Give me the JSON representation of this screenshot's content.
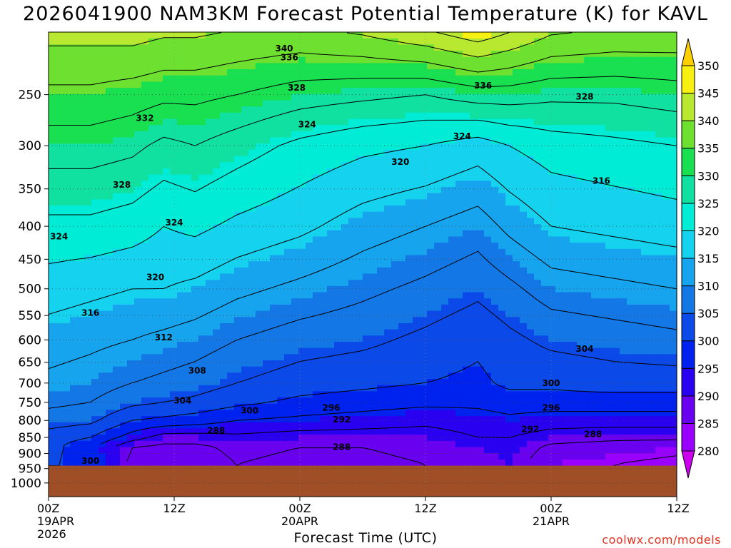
{
  "chart_data": {
    "type": "heatmap",
    "title": "2026041900 NAM3KM Forecast Potential Temperature (K) for KAVL",
    "xlabel": "Forecast Time (UTC)",
    "ylabel": "",
    "x_ticks": [
      {
        "hours": 0,
        "line1": "00Z",
        "line2": "19APR",
        "line3": "2026"
      },
      {
        "hours": 12,
        "line1": "12Z",
        "line2": "",
        "line3": ""
      },
      {
        "hours": 24,
        "line1": "00Z",
        "line2": "20APR",
        "line3": ""
      },
      {
        "hours": 36,
        "line1": "12Z",
        "line2": "",
        "line3": ""
      },
      {
        "hours": 48,
        "line1": "00Z",
        "line2": "21APR",
        "line3": ""
      },
      {
        "hours": 60,
        "line1": "12Z",
        "line2": "",
        "line3": ""
      }
    ],
    "xlim_hours": [
      0,
      60
    ],
    "y_axis": "pressure (hPa), inverted, log scale",
    "y_ticks": [
      250,
      300,
      350,
      400,
      450,
      500,
      550,
      600,
      650,
      700,
      750,
      800,
      850,
      900,
      950,
      1000
    ],
    "ylim_hpa": [
      1050,
      200
    ],
    "grid": true,
    "colorbar": {
      "levels": [
        280,
        285,
        290,
        295,
        300,
        305,
        310,
        315,
        320,
        325,
        330,
        335,
        340,
        345,
        350
      ],
      "colors": [
        "#cc00ee",
        "#9900ff",
        "#6a00f0",
        "#2a00f0",
        "#0022ee",
        "#0b49e8",
        "#1377e6",
        "#17a4ee",
        "#15d2ee",
        "#00ecd6",
        "#10e0a0",
        "#18e050",
        "#6ee030",
        "#b8e830",
        "#f8f010",
        "#ffd000"
      ],
      "placement": "right"
    },
    "terrain_color": "#a04e25",
    "surface_pressure_hpa": 940,
    "theta_profiles": [
      {
        "hours": 0,
        "theta": [
          [
            935,
            300
          ],
          [
            850,
            302
          ],
          [
            800,
            306
          ],
          [
            750,
            309
          ],
          [
            700,
            311
          ],
          [
            600,
            314
          ],
          [
            500,
            318
          ],
          [
            400,
            323
          ],
          [
            300,
            330
          ],
          [
            250,
            335
          ],
          [
            210,
            340
          ]
        ]
      },
      {
        "hours": 4,
        "theta": [
          [
            935,
            300
          ],
          [
            880,
            297
          ],
          [
            850,
            300
          ],
          [
            800,
            305
          ],
          [
            750,
            308
          ],
          [
            700,
            310
          ],
          [
            600,
            313
          ],
          [
            500,
            317
          ],
          [
            400,
            323
          ],
          [
            300,
            330
          ],
          [
            250,
            335
          ],
          [
            210,
            340
          ]
        ]
      },
      {
        "hours": 8,
        "theta": [
          [
            935,
            286
          ],
          [
            880,
            288
          ],
          [
            850,
            294
          ],
          [
            800,
            300
          ],
          [
            750,
            305
          ],
          [
            700,
            308
          ],
          [
            600,
            312
          ],
          [
            500,
            316
          ],
          [
            400,
            322
          ],
          [
            300,
            329
          ],
          [
            250,
            334
          ],
          [
            210,
            340
          ]
        ]
      },
      {
        "hours": 11,
        "theta": [
          [
            935,
            285
          ],
          [
            880,
            287
          ],
          [
            850,
            290
          ],
          [
            800,
            299
          ],
          [
            750,
            304
          ],
          [
            700,
            307
          ],
          [
            600,
            311
          ],
          [
            500,
            316
          ],
          [
            400,
            320
          ],
          [
            300,
            327
          ],
          [
            250,
            333
          ],
          [
            210,
            339
          ]
        ]
      },
      {
        "hours": 14,
        "theta": [
          [
            935,
            286
          ],
          [
            880,
            287
          ],
          [
            850,
            290
          ],
          [
            800,
            298
          ],
          [
            750,
            303
          ],
          [
            700,
            306
          ],
          [
            600,
            310
          ],
          [
            500,
            315
          ],
          [
            400,
            321
          ],
          [
            300,
            328
          ],
          [
            250,
            333
          ],
          [
            210,
            339
          ]
        ]
      },
      {
        "hours": 18,
        "theta": [
          [
            935,
            288
          ],
          [
            880,
            289
          ],
          [
            850,
            291
          ],
          [
            800,
            296
          ],
          [
            750,
            301
          ],
          [
            700,
            304
          ],
          [
            600,
            308
          ],
          [
            500,
            313
          ],
          [
            400,
            319
          ],
          [
            300,
            326
          ],
          [
            250,
            332
          ],
          [
            210,
            338
          ]
        ]
      },
      {
        "hours": 24,
        "theta": [
          [
            935,
            287
          ],
          [
            880,
            288
          ],
          [
            850,
            290
          ],
          [
            800,
            295
          ],
          [
            750,
            299
          ],
          [
            700,
            302
          ],
          [
            600,
            306
          ],
          [
            500,
            311
          ],
          [
            400,
            317
          ],
          [
            300,
            323
          ],
          [
            250,
            330
          ],
          [
            210,
            337
          ]
        ]
      },
      {
        "hours": 30,
        "theta": [
          [
            935,
            287
          ],
          [
            880,
            288
          ],
          [
            850,
            290
          ],
          [
            800,
            294
          ],
          [
            750,
            298
          ],
          [
            700,
            301
          ],
          [
            600,
            305
          ],
          [
            500,
            309
          ],
          [
            400,
            314
          ],
          [
            300,
            321
          ],
          [
            250,
            329
          ],
          [
            210,
            338
          ]
        ]
      },
      {
        "hours": 36,
        "theta": [
          [
            935,
            288
          ],
          [
            880,
            289
          ],
          [
            850,
            290
          ],
          [
            800,
            293
          ],
          [
            750,
            297
          ],
          [
            700,
            300
          ],
          [
            600,
            303
          ],
          [
            500,
            307
          ],
          [
            400,
            312
          ],
          [
            300,
            320
          ],
          [
            250,
            328
          ],
          [
            210,
            340
          ]
        ]
      },
      {
        "hours": 41,
        "theta": [
          [
            935,
            289
          ],
          [
            880,
            290
          ],
          [
            850,
            292
          ],
          [
            800,
            294
          ],
          [
            750,
            297
          ],
          [
            700,
            299
          ],
          [
            600,
            301
          ],
          [
            500,
            305
          ],
          [
            400,
            310
          ],
          [
            300,
            318
          ],
          [
            250,
            330
          ],
          [
            210,
            343
          ]
        ]
      },
      {
        "hours": 44,
        "theta": [
          [
            935,
            290
          ],
          [
            880,
            291
          ],
          [
            850,
            292
          ],
          [
            800,
            295
          ],
          [
            750,
            298
          ],
          [
            700,
            301
          ],
          [
            600,
            303
          ],
          [
            500,
            307
          ],
          [
            400,
            313
          ],
          [
            300,
            320
          ],
          [
            250,
            330
          ],
          [
            210,
            341
          ]
        ]
      },
      {
        "hours": 48,
        "theta": [
          [
            935,
            285
          ],
          [
            880,
            287
          ],
          [
            850,
            290
          ],
          [
            800,
            294
          ],
          [
            750,
            298
          ],
          [
            700,
            301
          ],
          [
            600,
            305
          ],
          [
            500,
            310
          ],
          [
            400,
            316
          ],
          [
            300,
            322
          ],
          [
            250,
            329
          ],
          [
            210,
            338
          ]
        ]
      },
      {
        "hours": 54,
        "theta": [
          [
            935,
            284
          ],
          [
            880,
            286
          ],
          [
            850,
            289
          ],
          [
            800,
            294
          ],
          [
            750,
            298
          ],
          [
            700,
            302
          ],
          [
            600,
            306
          ],
          [
            500,
            311
          ],
          [
            400,
            317
          ],
          [
            300,
            323
          ],
          [
            250,
            329
          ],
          [
            210,
            337
          ]
        ]
      },
      {
        "hours": 60,
        "theta": [
          [
            935,
            283
          ],
          [
            880,
            285
          ],
          [
            850,
            289
          ],
          [
            800,
            294
          ],
          [
            750,
            298
          ],
          [
            700,
            302
          ],
          [
            600,
            307
          ],
          [
            500,
            312
          ],
          [
            400,
            318
          ],
          [
            300,
            324
          ],
          [
            250,
            330
          ],
          [
            210,
            337
          ]
        ]
      }
    ],
    "contour_labels": [
      {
        "text": "340",
        "hours": 22.5,
        "hpa": 212
      },
      {
        "text": "336",
        "hours": 23.0,
        "hpa": 219
      },
      {
        "text": "336",
        "hours": 41.5,
        "hpa": 242
      },
      {
        "text": "332",
        "hours": 9.2,
        "hpa": 272
      },
      {
        "text": "328",
        "hours": 23.7,
        "hpa": 244
      },
      {
        "text": "328",
        "hours": 51.2,
        "hpa": 252
      },
      {
        "text": "328",
        "hours": 7.0,
        "hpa": 345
      },
      {
        "text": "324",
        "hours": 24.7,
        "hpa": 278
      },
      {
        "text": "324",
        "hours": 39.5,
        "hpa": 290
      },
      {
        "text": "324",
        "hours": 12.0,
        "hpa": 395
      },
      {
        "text": "324",
        "hours": 1.0,
        "hpa": 415
      },
      {
        "text": "320",
        "hours": 33.6,
        "hpa": 318
      },
      {
        "text": "320",
        "hours": 10.2,
        "hpa": 480
      },
      {
        "text": "316",
        "hours": 52.8,
        "hpa": 340
      },
      {
        "text": "316",
        "hours": 4.0,
        "hpa": 545
      },
      {
        "text": "312",
        "hours": 11.0,
        "hpa": 595
      },
      {
        "text": "308",
        "hours": 14.2,
        "hpa": 670
      },
      {
        "text": "304",
        "hours": 51.2,
        "hpa": 620
      },
      {
        "text": "304",
        "hours": 12.8,
        "hpa": 745
      },
      {
        "text": "300",
        "hours": 48.0,
        "hpa": 700
      },
      {
        "text": "300",
        "hours": 19.2,
        "hpa": 772
      },
      {
        "text": "300",
        "hours": 4.0,
        "hpa": 925
      },
      {
        "text": "296",
        "hours": 27.0,
        "hpa": 765
      },
      {
        "text": "296",
        "hours": 48.0,
        "hpa": 765
      },
      {
        "text": "292",
        "hours": 28.0,
        "hpa": 797
      },
      {
        "text": "292",
        "hours": 46.0,
        "hpa": 825
      },
      {
        "text": "288",
        "hours": 16.0,
        "hpa": 830
      },
      {
        "text": "288",
        "hours": 28.0,
        "hpa": 880
      },
      {
        "text": "288",
        "hours": 52.0,
        "hpa": 840
      }
    ]
  },
  "watermark": "coolwx.com/models"
}
